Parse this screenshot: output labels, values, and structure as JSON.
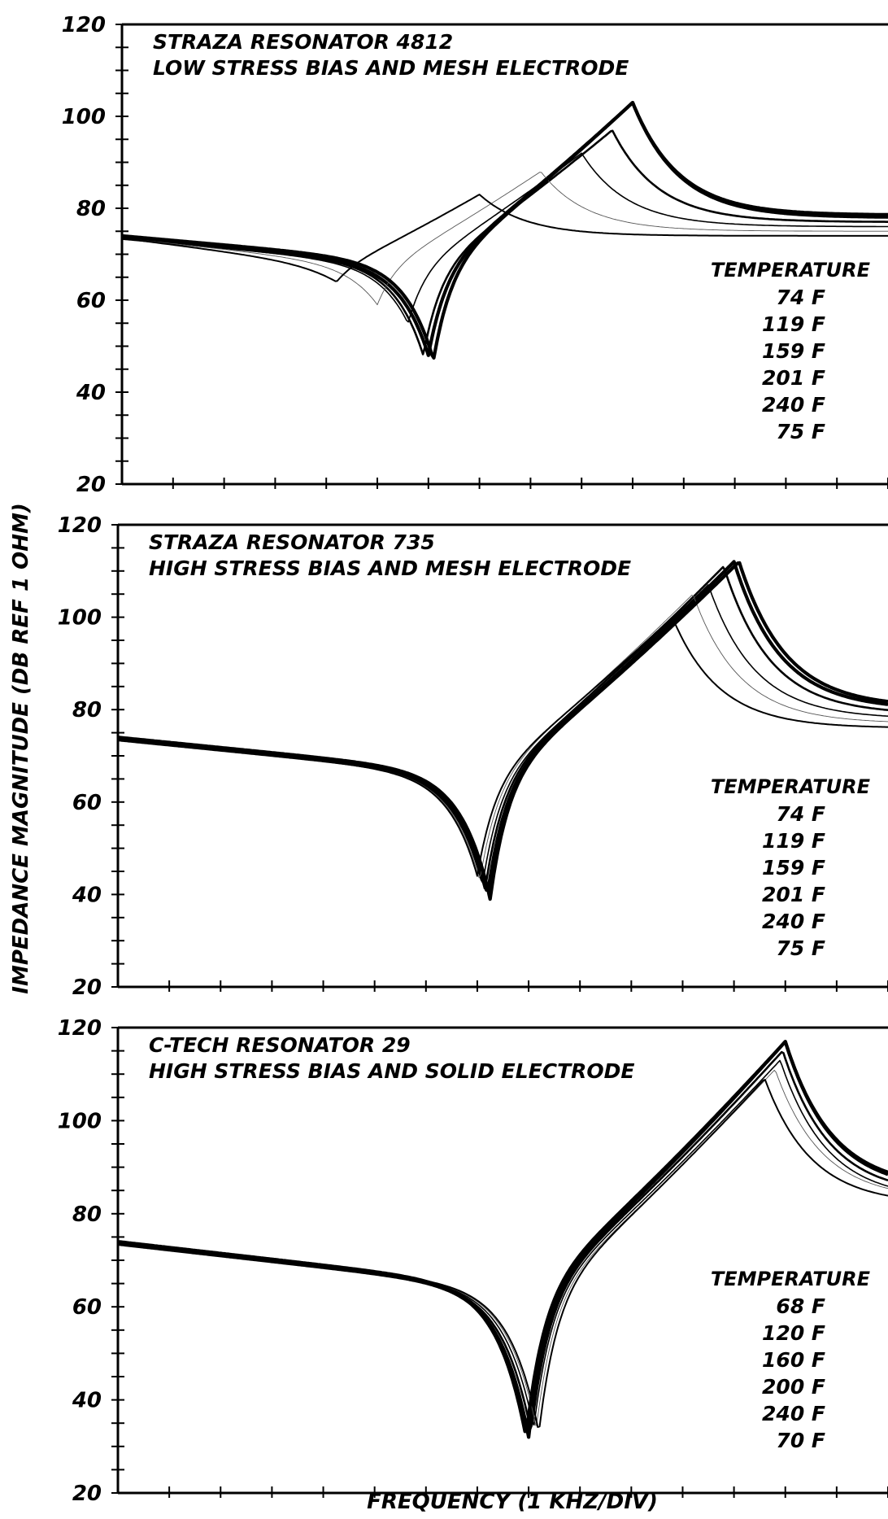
{
  "figure": {
    "ylabel": "IMPEDANCE MAGNITUDE (DB REF 1 OHM)",
    "xlabel": "FREQUENCY (1 KHZ/DIV)"
  },
  "chart_data": [
    {
      "type": "line",
      "title_line1": "STRAZA RESONATOR 4812",
      "title_line2": "LOW STRESS BIAS AND MESH ELECTRODE",
      "ylim": [
        20,
        120
      ],
      "yticks": [
        20,
        40,
        60,
        80,
        100,
        120
      ],
      "xlim": [
        0,
        15
      ],
      "legend_title": "TEMPERATURE",
      "legend_position": "right",
      "series": [
        {
          "name": "74 F",
          "shape": {
            "base": 73.5,
            "drop": 6,
            "resX": 6.0,
            "resDepth": 48,
            "antiX": 10.0,
            "antiPeak": 103,
            "end": 78
          }
        },
        {
          "name": "119 F",
          "shape": {
            "base": 73.5,
            "drop": 6,
            "resX": 5.9,
            "resDepth": 48,
            "antiX": 9.6,
            "antiPeak": 97,
            "end": 77
          }
        },
        {
          "name": "159 F",
          "shape": {
            "base": 73.5,
            "drop": 6,
            "resX": 5.6,
            "resDepth": 55,
            "antiX": 9.0,
            "antiPeak": 92,
            "end": 76
          }
        },
        {
          "name": "201 F",
          "shape": {
            "base": 73.5,
            "drop": 6,
            "resX": 5.0,
            "resDepth": 59,
            "antiX": 8.2,
            "antiPeak": 88,
            "end": 75
          }
        },
        {
          "name": "240 F",
          "shape": {
            "base": 73.5,
            "drop": 6,
            "resX": 4.2,
            "resDepth": 64,
            "antiX": 7.0,
            "antiPeak": 83,
            "end": 74
          }
        },
        {
          "name": "75 F",
          "shape": {
            "base": 74,
            "drop": 6,
            "resX": 6.1,
            "resDepth": 47,
            "antiX": 10.0,
            "antiPeak": 103,
            "end": 78.5
          }
        }
      ]
    },
    {
      "type": "line",
      "title_line1": "STRAZA RESONATOR 735",
      "title_line2": "HIGH STRESS BIAS AND MESH ELECTRODE",
      "ylim": [
        20,
        120
      ],
      "yticks": [
        20,
        40,
        60,
        80,
        100,
        120
      ],
      "xlim": [
        0,
        15
      ],
      "legend_title": "TEMPERATURE",
      "legend_position": "right",
      "series": [
        {
          "name": "74 F",
          "shape": {
            "base": 73.5,
            "drop": 8,
            "resX": 7.2,
            "resDepth": 40,
            "antiX": 12.0,
            "antiPeak": 112,
            "end": 80
          }
        },
        {
          "name": "119 F",
          "shape": {
            "base": 73.5,
            "drop": 8,
            "resX": 7.15,
            "resDepth": 41,
            "antiX": 11.8,
            "antiPeak": 111,
            "end": 79
          }
        },
        {
          "name": "159 F",
          "shape": {
            "base": 73.5,
            "drop": 8,
            "resX": 7.1,
            "resDepth": 42,
            "antiX": 11.5,
            "antiPeak": 107,
            "end": 78
          }
        },
        {
          "name": "201 F",
          "shape": {
            "base": 73.5,
            "drop": 8,
            "resX": 7.05,
            "resDepth": 43,
            "antiX": 11.2,
            "antiPeak": 105,
            "end": 77
          }
        },
        {
          "name": "240 F",
          "shape": {
            "base": 73.5,
            "drop": 8,
            "resX": 7.0,
            "resDepth": 44,
            "antiX": 10.8,
            "antiPeak": 100,
            "end": 76
          }
        },
        {
          "name": "75 F",
          "shape": {
            "base": 74,
            "drop": 8,
            "resX": 7.25,
            "resDepth": 39,
            "antiX": 12.1,
            "antiPeak": 112,
            "end": 80.5
          }
        }
      ]
    },
    {
      "type": "line",
      "title_line1": "C-TECH RESONATOR 29",
      "title_line2": "HIGH STRESS BIAS AND SOLID ELECTRODE",
      "ylim": [
        20,
        120
      ],
      "yticks": [
        20,
        40,
        60,
        80,
        100,
        120
      ],
      "xlim": [
        0,
        15
      ],
      "legend_title": "TEMPERATURE",
      "legend_position": "right",
      "series": [
        {
          "name": "68 F",
          "shape": {
            "base": 73.5,
            "drop": 10,
            "resX": 8.0,
            "resDepth": 32,
            "antiX": 13.0,
            "antiPeak": 117,
            "end": 85
          }
        },
        {
          "name": "120 F",
          "shape": {
            "base": 73.5,
            "drop": 10,
            "resX": 8.05,
            "resDepth": 33,
            "antiX": 12.95,
            "antiPeak": 115,
            "end": 84
          }
        },
        {
          "name": "160 F",
          "shape": {
            "base": 73.5,
            "drop": 10,
            "resX": 8.1,
            "resDepth": 34,
            "antiX": 12.9,
            "antiPeak": 113,
            "end": 83
          }
        },
        {
          "name": "200 F",
          "shape": {
            "base": 73.5,
            "drop": 10,
            "resX": 8.15,
            "resDepth": 34,
            "antiX": 12.8,
            "antiPeak": 111,
            "end": 83
          }
        },
        {
          "name": "240 F",
          "shape": {
            "base": 73.5,
            "drop": 10,
            "resX": 8.2,
            "resDepth": 33,
            "antiX": 12.6,
            "antiPeak": 109,
            "end": 82
          }
        },
        {
          "name": "70 F",
          "shape": {
            "base": 74,
            "drop": 10,
            "resX": 7.95,
            "resDepth": 32,
            "antiX": 13.0,
            "antiPeak": 117,
            "end": 85.5
          }
        }
      ]
    }
  ]
}
